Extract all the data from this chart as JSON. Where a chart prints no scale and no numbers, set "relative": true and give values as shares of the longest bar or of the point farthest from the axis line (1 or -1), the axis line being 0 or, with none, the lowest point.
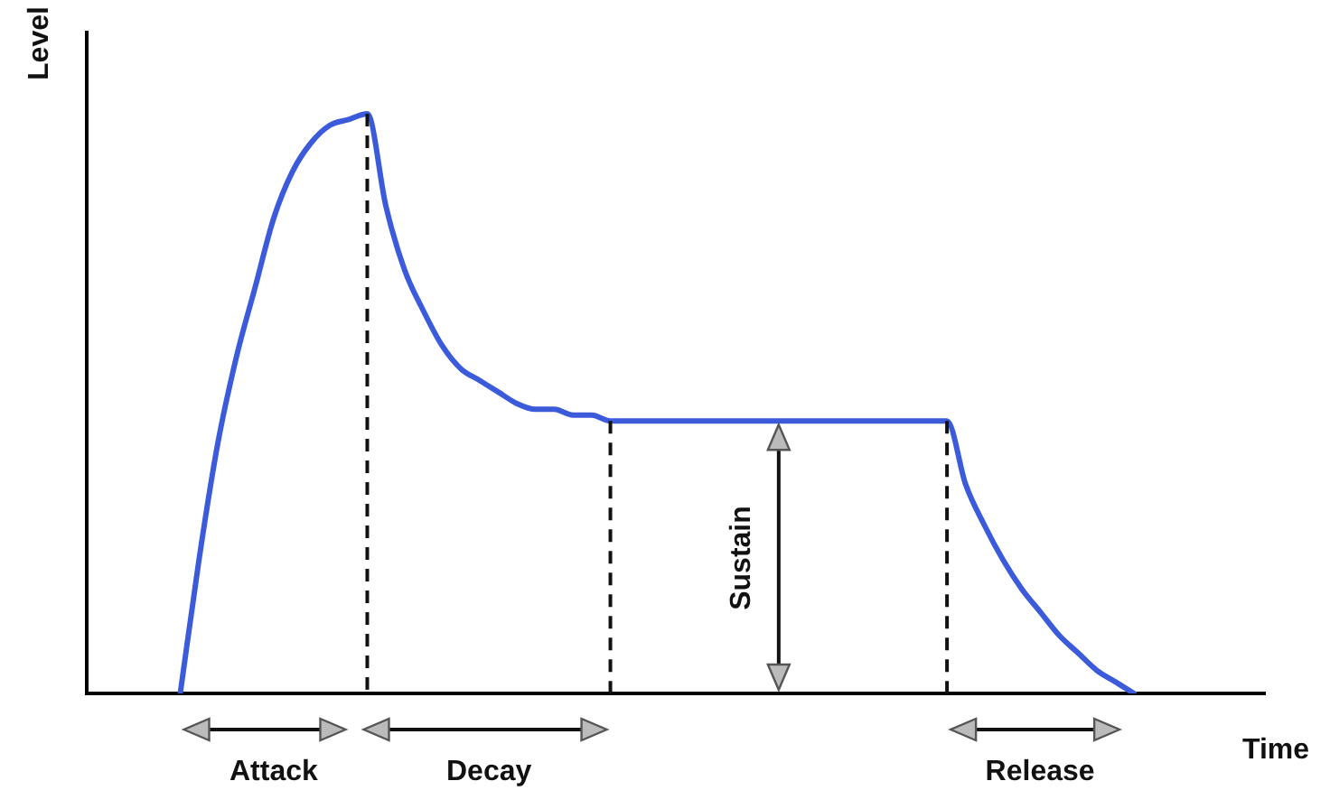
{
  "chart_data": {
    "type": "line",
    "relative": true,
    "xlabel": "Time",
    "ylabel": "Level",
    "categories": [
      null,
      null,
      null,
      null,
      null,
      null,
      null,
      null,
      null,
      null,
      null,
      null,
      null,
      null,
      null,
      null,
      null,
      null,
      null,
      null,
      null,
      null,
      null,
      null,
      null,
      null,
      null,
      null,
      null,
      null,
      null,
      null,
      null,
      null,
      null,
      null,
      null,
      null,
      null,
      null,
      null,
      null,
      null,
      null,
      null,
      null,
      null,
      null,
      null,
      null,
      null,
      null,
      null,
      null,
      null,
      null,
      null,
      null,
      null,
      null,
      null,
      null,
      null,
      null
    ],
    "values": [
      null,
      null,
      null,
      null,
      null,
      0,
      0.23,
      0.43,
      0.58,
      0.7,
      0.82,
      0.9,
      0.95,
      0.98,
      0.99,
      1,
      0.84,
      0.73,
      0.66,
      0.6,
      0.56,
      0.54,
      0.52,
      0.5,
      0.49,
      0.49,
      0.48,
      0.48,
      0.47,
      0.47,
      0.47,
      0.47,
      0.47,
      0.47,
      0.47,
      0.47,
      0.47,
      0.47,
      0.47,
      0.47,
      0.47,
      0.47,
      0.47,
      0.47,
      0.47,
      0.47,
      0.47,
      0.36,
      0.29,
      0.23,
      0.18,
      0.14,
      0.1,
      0.07,
      0.04,
      0.02,
      0,
      null,
      null,
      null,
      null,
      null,
      null,
      null
    ],
    "color": "#3b5bdb",
    "marker": "none",
    "annotations": [
      "Attack",
      "Decay",
      "Sustain",
      "Release"
    ]
  }
}
